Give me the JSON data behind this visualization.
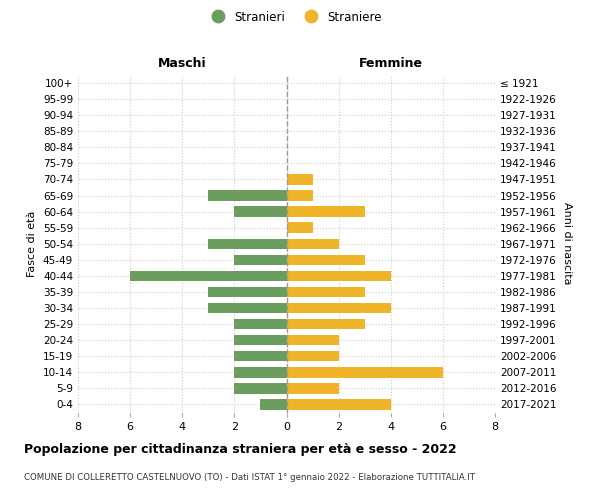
{
  "age_groups": [
    "100+",
    "95-99",
    "90-94",
    "85-89",
    "80-84",
    "75-79",
    "70-74",
    "65-69",
    "60-64",
    "55-59",
    "50-54",
    "45-49",
    "40-44",
    "35-39",
    "30-34",
    "25-29",
    "20-24",
    "15-19",
    "10-14",
    "5-9",
    "0-4"
  ],
  "birth_years": [
    "≤ 1921",
    "1922-1926",
    "1927-1931",
    "1932-1936",
    "1937-1941",
    "1942-1946",
    "1947-1951",
    "1952-1956",
    "1957-1961",
    "1962-1966",
    "1967-1971",
    "1972-1976",
    "1977-1981",
    "1982-1986",
    "1987-1991",
    "1992-1996",
    "1997-2001",
    "2002-2006",
    "2007-2011",
    "2012-2016",
    "2017-2021"
  ],
  "maschi": [
    0,
    0,
    0,
    0,
    0,
    0,
    0,
    3,
    2,
    0,
    3,
    2,
    6,
    3,
    3,
    2,
    2,
    2,
    2,
    2,
    1
  ],
  "femmine": [
    0,
    0,
    0,
    0,
    0,
    0,
    1,
    1,
    3,
    1,
    2,
    3,
    4,
    3,
    4,
    3,
    2,
    2,
    6,
    2,
    4
  ],
  "maschi_color": "#6b9e5e",
  "femmine_color": "#f0b429",
  "background_color": "#ffffff",
  "grid_color": "#cccccc",
  "title": "Popolazione per cittadinanza straniera per età e sesso - 2022",
  "subtitle": "COMUNE DI COLLERETTO CASTELNUOVO (TO) - Dati ISTAT 1° gennaio 2022 - Elaborazione TUTTITALIA.IT",
  "ylabel_left": "Fasce di età",
  "ylabel_right": "Anni di nascita",
  "label_maschi": "Maschi",
  "label_femmine": "Femmine",
  "legend_maschi": "Stranieri",
  "legend_femmine": "Straniere",
  "xlim": 8
}
